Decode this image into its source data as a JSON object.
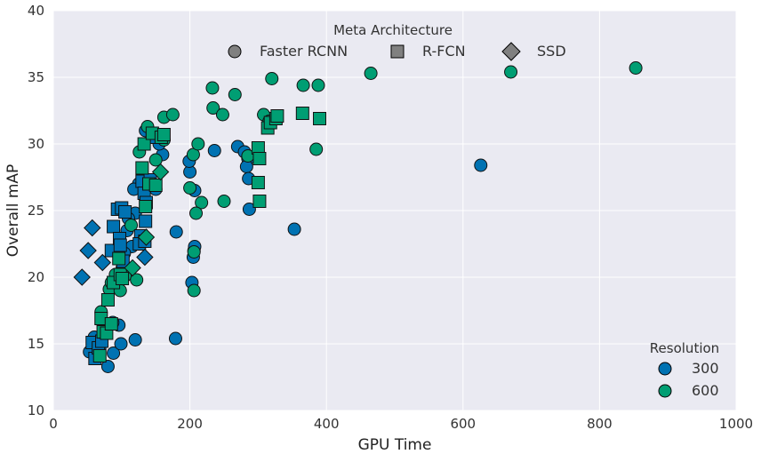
{
  "chart_data": {
    "type": "scatter",
    "xlabel": "GPU Time",
    "ylabel": "Overall mAP",
    "xlim": [
      0,
      1000
    ],
    "ylim": [
      10,
      40
    ],
    "xticks": [
      0,
      200,
      400,
      600,
      800,
      1000
    ],
    "yticks": [
      10,
      15,
      20,
      25,
      30,
      35,
      40
    ],
    "grid": true,
    "legends": [
      {
        "title": "Meta Architecture",
        "placement": "top-center",
        "entries": [
          {
            "label": "Faster RCNN",
            "marker": "circle"
          },
          {
            "label": "R-FCN",
            "marker": "square"
          },
          {
            "label": "SSD",
            "marker": "diamond"
          }
        ]
      },
      {
        "title": "Resolution",
        "placement": "lower-right",
        "entries": [
          {
            "label": "300",
            "color": "#0072b2"
          },
          {
            "label": "600",
            "color": "#009e73"
          }
        ]
      }
    ],
    "colors": {
      "300": "#0072b2",
      "600": "#009e73",
      "background": "#eaeaf2",
      "grid": "#ffffff"
    },
    "series": [
      {
        "meta": "Faster RCNN",
        "resolution": "300",
        "marker": "circle",
        "points": [
          [
            53,
            14.4
          ],
          [
            60,
            15.5
          ],
          [
            68,
            14.7
          ],
          [
            80,
            13.3
          ],
          [
            88,
            14.3
          ],
          [
            99,
            15
          ],
          [
            120,
            15.3
          ],
          [
            179,
            15.4
          ],
          [
            203,
            19.6
          ],
          [
            205,
            21.5
          ],
          [
            206,
            22
          ],
          [
            207,
            22.3
          ],
          [
            207,
            26.5
          ],
          [
            200,
            27.9
          ],
          [
            199,
            28.7
          ],
          [
            180,
            23.4
          ],
          [
            150,
            26.6
          ],
          [
            160,
            29.2
          ],
          [
            155,
            30
          ],
          [
            135,
            31
          ],
          [
            125,
            27
          ],
          [
            118,
            26.6
          ],
          [
            120,
            24.8
          ],
          [
            110,
            24.4
          ],
          [
            108,
            23.5
          ],
          [
            127,
            22.8
          ],
          [
            115,
            22.3
          ],
          [
            104,
            21.8
          ],
          [
            96,
            21.6
          ],
          [
            101,
            20.7
          ],
          [
            96,
            16.4
          ],
          [
            87,
            16.6
          ],
          [
            236,
            29.5
          ],
          [
            270,
            29.8
          ],
          [
            280,
            29.4
          ],
          [
            285,
            28.9
          ],
          [
            283,
            28.3
          ],
          [
            286,
            27.4
          ],
          [
            287,
            25.1
          ],
          [
            353,
            23.6
          ],
          [
            626,
            28.4
          ]
        ]
      },
      {
        "meta": "Faster RCNN",
        "resolution": "600",
        "marker": "circle",
        "points": [
          [
            70,
            17.4
          ],
          [
            82,
            19.1
          ],
          [
            85,
            19.6
          ],
          [
            91,
            20.2
          ],
          [
            98,
            19
          ],
          [
            105,
            20.1
          ],
          [
            114,
            23.9
          ],
          [
            122,
            19.8
          ],
          [
            126,
            29.4
          ],
          [
            138,
            31.3
          ],
          [
            150,
            28.8
          ],
          [
            162,
            32
          ],
          [
            175,
            32.2
          ],
          [
            162,
            30.3
          ],
          [
            205,
            29.2
          ],
          [
            212,
            30
          ],
          [
            233,
            34.2
          ],
          [
            234,
            32.7
          ],
          [
            248,
            32.2
          ],
          [
            266,
            33.7
          ],
          [
            308,
            32.2
          ],
          [
            316,
            31.7
          ],
          [
            320,
            34.9
          ],
          [
            366,
            34.4
          ],
          [
            388,
            34.4
          ],
          [
            385,
            29.6
          ],
          [
            465,
            35.3
          ],
          [
            670,
            35.4
          ],
          [
            853,
            35.7
          ],
          [
            200,
            26.7
          ],
          [
            217,
            25.6
          ],
          [
            209,
            24.8
          ],
          [
            206,
            21.9
          ],
          [
            206,
            19
          ],
          [
            250,
            25.7
          ],
          [
            285,
            29.1
          ]
        ]
      },
      {
        "meta": "R-FCN",
        "resolution": "300",
        "marker": "square",
        "points": [
          [
            57,
            15.1
          ],
          [
            61,
            13.9
          ],
          [
            66,
            14.7
          ],
          [
            71,
            15.2
          ],
          [
            75,
            16
          ],
          [
            85,
            22
          ],
          [
            88,
            23.8
          ],
          [
            94,
            25.1
          ],
          [
            100,
            25.2
          ],
          [
            105,
            24.9
          ],
          [
            97,
            22.9
          ],
          [
            98,
            22.4
          ],
          [
            102,
            21.2
          ],
          [
            130,
            27.2
          ],
          [
            133,
            26.3
          ],
          [
            136,
            25.6
          ],
          [
            142,
            27.3
          ],
          [
            145,
            30.5
          ],
          [
            128,
            23.1
          ],
          [
            135,
            24.2
          ],
          [
            126,
            22.5
          ],
          [
            134,
            22.7
          ]
        ]
      },
      {
        "meta": "R-FCN",
        "resolution": "600",
        "marker": "square",
        "points": [
          [
            70,
            16.9
          ],
          [
            73,
            15.9
          ],
          [
            78,
            15.8
          ],
          [
            85,
            16.5
          ],
          [
            88,
            19.6
          ],
          [
            96,
            21.4
          ],
          [
            98,
            20.2
          ],
          [
            101,
            19.9
          ],
          [
            130,
            28.2
          ],
          [
            133,
            30
          ],
          [
            145,
            30.8
          ],
          [
            158,
            30.5
          ],
          [
            162,
            30.7
          ],
          [
            135,
            25.3
          ],
          [
            140,
            27
          ],
          [
            150,
            26.9
          ],
          [
            300,
            29.7
          ],
          [
            302,
            28.9
          ],
          [
            300,
            27.1
          ],
          [
            302,
            25.7
          ],
          [
            314,
            31.2
          ],
          [
            318,
            31.6
          ],
          [
            326,
            31.9
          ],
          [
            328,
            32.1
          ],
          [
            365,
            32.3
          ],
          [
            390,
            31.9
          ],
          [
            80,
            18.3
          ],
          [
            68,
            14.1
          ]
        ]
      },
      {
        "meta": "SSD",
        "resolution": "300",
        "marker": "diamond",
        "points": [
          [
            42,
            20
          ],
          [
            51,
            22
          ],
          [
            57,
            23.7
          ],
          [
            72,
            21.1
          ],
          [
            134,
            21.5
          ]
        ]
      },
      {
        "meta": "SSD",
        "resolution": "600",
        "marker": "diamond",
        "points": [
          [
            116,
            20.7
          ],
          [
            136,
            23
          ],
          [
            157,
            27.9
          ]
        ]
      }
    ]
  }
}
